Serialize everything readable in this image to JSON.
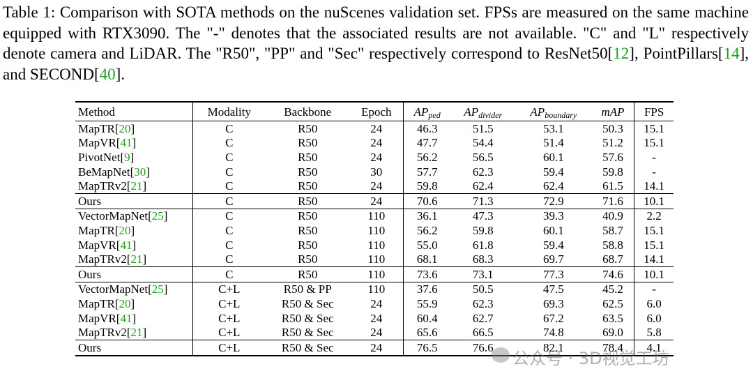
{
  "caption": [
    {
      "text": "Table 1: Comparison with SOTA methods on the nuScenes validation set. FPSs are measured on the same machine equipped with RTX3090. The \"-\" denotes that the associated results are not available. \"C\" and \"L\" respectively denote camera and LiDAR. The \"R50\", \"PP\" and \"Sec\" respectively correspond to ResNet50["
    },
    {
      "text": "12",
      "cite": true
    },
    {
      "text": "], PointPillars["
    },
    {
      "text": "14",
      "cite": true
    },
    {
      "text": "], and SECOND["
    },
    {
      "text": "40",
      "cite": true
    },
    {
      "text": "]."
    }
  ],
  "table": {
    "header": [
      {
        "text": "Method"
      },
      {
        "text": "Modality"
      },
      {
        "text": "Backbone"
      },
      {
        "text": "Epoch"
      },
      {
        "text": "AP",
        "sub": "ped",
        "italic": true
      },
      {
        "text": "AP",
        "sub": "divider",
        "italic": true
      },
      {
        "text": "AP",
        "sub": "boundary",
        "italic": true
      },
      {
        "text": "mAP",
        "italic": true
      },
      {
        "text": "FPS"
      }
    ],
    "groups": [
      {
        "rows": [
          [
            [
              {
                "text": "MapTR["
              },
              {
                "text": "20",
                "cite": true
              },
              {
                "text": "]"
              }
            ],
            "C",
            "R50",
            "24",
            "46.3",
            "51.5",
            "53.1",
            "50.3",
            "15.1"
          ],
          [
            [
              {
                "text": "MapVR["
              },
              {
                "text": "41",
                "cite": true
              },
              {
                "text": "]"
              }
            ],
            "C",
            "R50",
            "24",
            "47.7",
            "54.4",
            "51.4",
            "51.2",
            "15.1"
          ],
          [
            [
              {
                "text": "PivotNet["
              },
              {
                "text": "9",
                "cite": true
              },
              {
                "text": "]"
              }
            ],
            "C",
            "R50",
            "24",
            "56.2",
            "56.5",
            "60.1",
            "57.6",
            "-"
          ],
          [
            [
              {
                "text": "BeMapNet["
              },
              {
                "text": "30",
                "cite": true
              },
              {
                "text": "]"
              }
            ],
            "C",
            "R50",
            "30",
            "57.7",
            "62.3",
            "59.4",
            "59.8",
            "-"
          ],
          [
            [
              {
                "text": "MapTRv2["
              },
              {
                "text": "21",
                "cite": true
              },
              {
                "text": "]"
              }
            ],
            "C",
            "R50",
            "24",
            "59.8",
            "62.4",
            "62.4",
            "61.5",
            "14.1"
          ]
        ]
      },
      {
        "best": true,
        "rows": [
          [
            [
              {
                "text": "Ours"
              }
            ],
            "C",
            "R50",
            "24",
            "70.6",
            "71.3",
            "72.9",
            "71.6",
            "10.1"
          ]
        ]
      },
      {
        "rows": [
          [
            [
              {
                "text": "VectorMapNet["
              },
              {
                "text": "25",
                "cite": true
              },
              {
                "text": "]"
              }
            ],
            "C",
            "R50",
            "110",
            "36.1",
            "47.3",
            "39.3",
            "40.9",
            "2.2"
          ],
          [
            [
              {
                "text": "MapTR["
              },
              {
                "text": "20",
                "cite": true
              },
              {
                "text": "]"
              }
            ],
            "C",
            "R50",
            "110",
            "56.2",
            "59.8",
            "60.1",
            "58.7",
            "15.1"
          ],
          [
            [
              {
                "text": "MapVR["
              },
              {
                "text": "41",
                "cite": true
              },
              {
                "text": "]"
              }
            ],
            "C",
            "R50",
            "110",
            "55.0",
            "61.8",
            "59.4",
            "58.8",
            "15.1"
          ],
          [
            [
              {
                "text": "MapTRv2["
              },
              {
                "text": "21",
                "cite": true
              },
              {
                "text": "]"
              }
            ],
            "C",
            "R50",
            "110",
            "68.1",
            "68.3",
            "69.7",
            "68.7",
            "14.1"
          ]
        ]
      },
      {
        "best": true,
        "rows": [
          [
            [
              {
                "text": "Ours"
              }
            ],
            "C",
            "R50",
            "110",
            "73.6",
            "73.1",
            "77.3",
            "74.6",
            "10.1"
          ]
        ]
      },
      {
        "rows": [
          [
            [
              {
                "text": "VectorMapNet["
              },
              {
                "text": "25",
                "cite": true
              },
              {
                "text": "]"
              }
            ],
            "C+L",
            "R50 & PP",
            "110",
            "37.6",
            "50.5",
            "47.5",
            "45.2",
            "-"
          ],
          [
            [
              {
                "text": "MapTR["
              },
              {
                "text": "20",
                "cite": true
              },
              {
                "text": "]"
              }
            ],
            "C+L",
            "R50 & Sec",
            "24",
            "55.9",
            "62.3",
            "69.3",
            "62.5",
            "6.0"
          ],
          [
            [
              {
                "text": "MapVR["
              },
              {
                "text": "41",
                "cite": true
              },
              {
                "text": "]"
              }
            ],
            "C+L",
            "R50 & Sec",
            "24",
            "60.4",
            "62.7",
            "67.2",
            "63.5",
            "6.0"
          ],
          [
            [
              {
                "text": "MapTRv2["
              },
              {
                "text": "21",
                "cite": true
              },
              {
                "text": "]"
              }
            ],
            "C+L",
            "R50 & Sec",
            "24",
            "65.6",
            "66.5",
            "74.8",
            "69.0",
            "5.8"
          ]
        ]
      },
      {
        "best": true,
        "rows": [
          [
            [
              {
                "text": "Ours"
              }
            ],
            "C+L",
            "R50 & Sec",
            "24",
            "76.5",
            "76.6",
            "82.1",
            "78.4",
            "4.1"
          ]
        ]
      }
    ]
  },
  "watermark": {
    "text": "公众号 · 3D视觉工坊"
  }
}
